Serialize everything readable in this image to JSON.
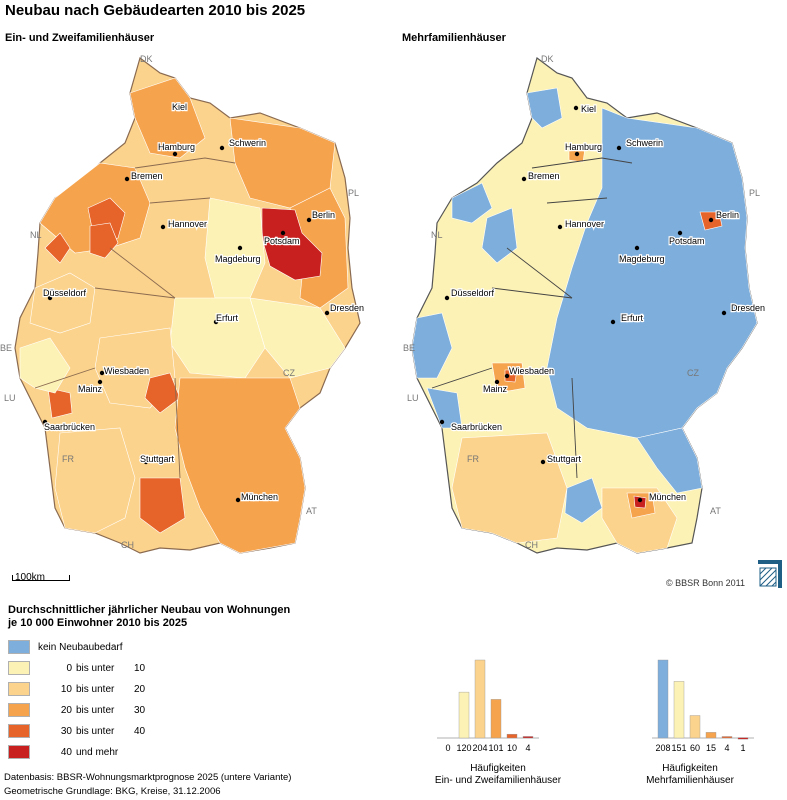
{
  "title": "Neubau nach Gebäudearten 2010 bis 2025",
  "left_map": {
    "subtitle": "Ein- und Zweifamilienhäuser",
    "cities": [
      "Kiel",
      "Hamburg",
      "Schwerin",
      "Bremen",
      "Berlin",
      "Hannover",
      "Potsdam",
      "Magdeburg",
      "Düsseldorf",
      "Dresden",
      "Erfurt",
      "Wiesbaden",
      "Mainz",
      "Saarbrücken",
      "Stuttgart",
      "München"
    ],
    "countries": [
      "DK",
      "NL",
      "PL",
      "BE",
      "LU",
      "CZ",
      "FR",
      "AT",
      "CH"
    ]
  },
  "right_map": {
    "subtitle": "Mehrfamilienhäuser",
    "cities": [
      "Kiel",
      "Hamburg",
      "Schwerin",
      "Bremen",
      "Berlin",
      "Hannover",
      "Potsdam",
      "Magdeburg",
      "Düsseldorf",
      "Dresden",
      "Erfurt",
      "Wiesbaden",
      "Mainz",
      "Saarbrücken",
      "Stuttgart",
      "München"
    ],
    "countries": [
      "DK",
      "NL",
      "PL",
      "BE",
      "LU",
      "CZ",
      "FR",
      "AT",
      "CH"
    ]
  },
  "scale_label": "100km",
  "copyright": "© BBSR Bonn 2011",
  "legend": {
    "title_line1": "Durchschnittlicher jährlicher Neubau von Wohnungen",
    "title_line2": "je 10 000 Einwohner 2010 bis 2025",
    "classes": [
      {
        "color": "#7eaedb",
        "from": "",
        "op": "kein Neubaubedarf",
        "to": ""
      },
      {
        "color": "#fdf2b5",
        "from": "0",
        "op": "bis unter",
        "to": "10"
      },
      {
        "color": "#fcd38c",
        "from": "10",
        "op": "bis unter",
        "to": "20"
      },
      {
        "color": "#f6a34d",
        "from": "20",
        "op": "bis unter",
        "to": "30"
      },
      {
        "color": "#e6632a",
        "from": "30",
        "op": "bis unter",
        "to": "40"
      },
      {
        "color": "#c8201f",
        "from": "40",
        "op": "und mehr",
        "to": ""
      }
    ]
  },
  "histograms": [
    {
      "caption_line1": "Häufigkeiten",
      "caption_line2": "Ein- und Zweifamilienhäuser",
      "counts": [
        0,
        120,
        204,
        101,
        10,
        4
      ]
    },
    {
      "caption_line1": "Häufigkeiten",
      "caption_line2": "Mehrfamilienhäuser",
      "counts": [
        208,
        151,
        60,
        15,
        4,
        1
      ]
    }
  ],
  "footnotes": {
    "line1": "Datenbasis: BBSR-Wohnungsmarktprognose 2025 (untere Variante)",
    "line2": "Geometrische Grundlage: BKG, Kreise, 31.12.2006"
  }
}
